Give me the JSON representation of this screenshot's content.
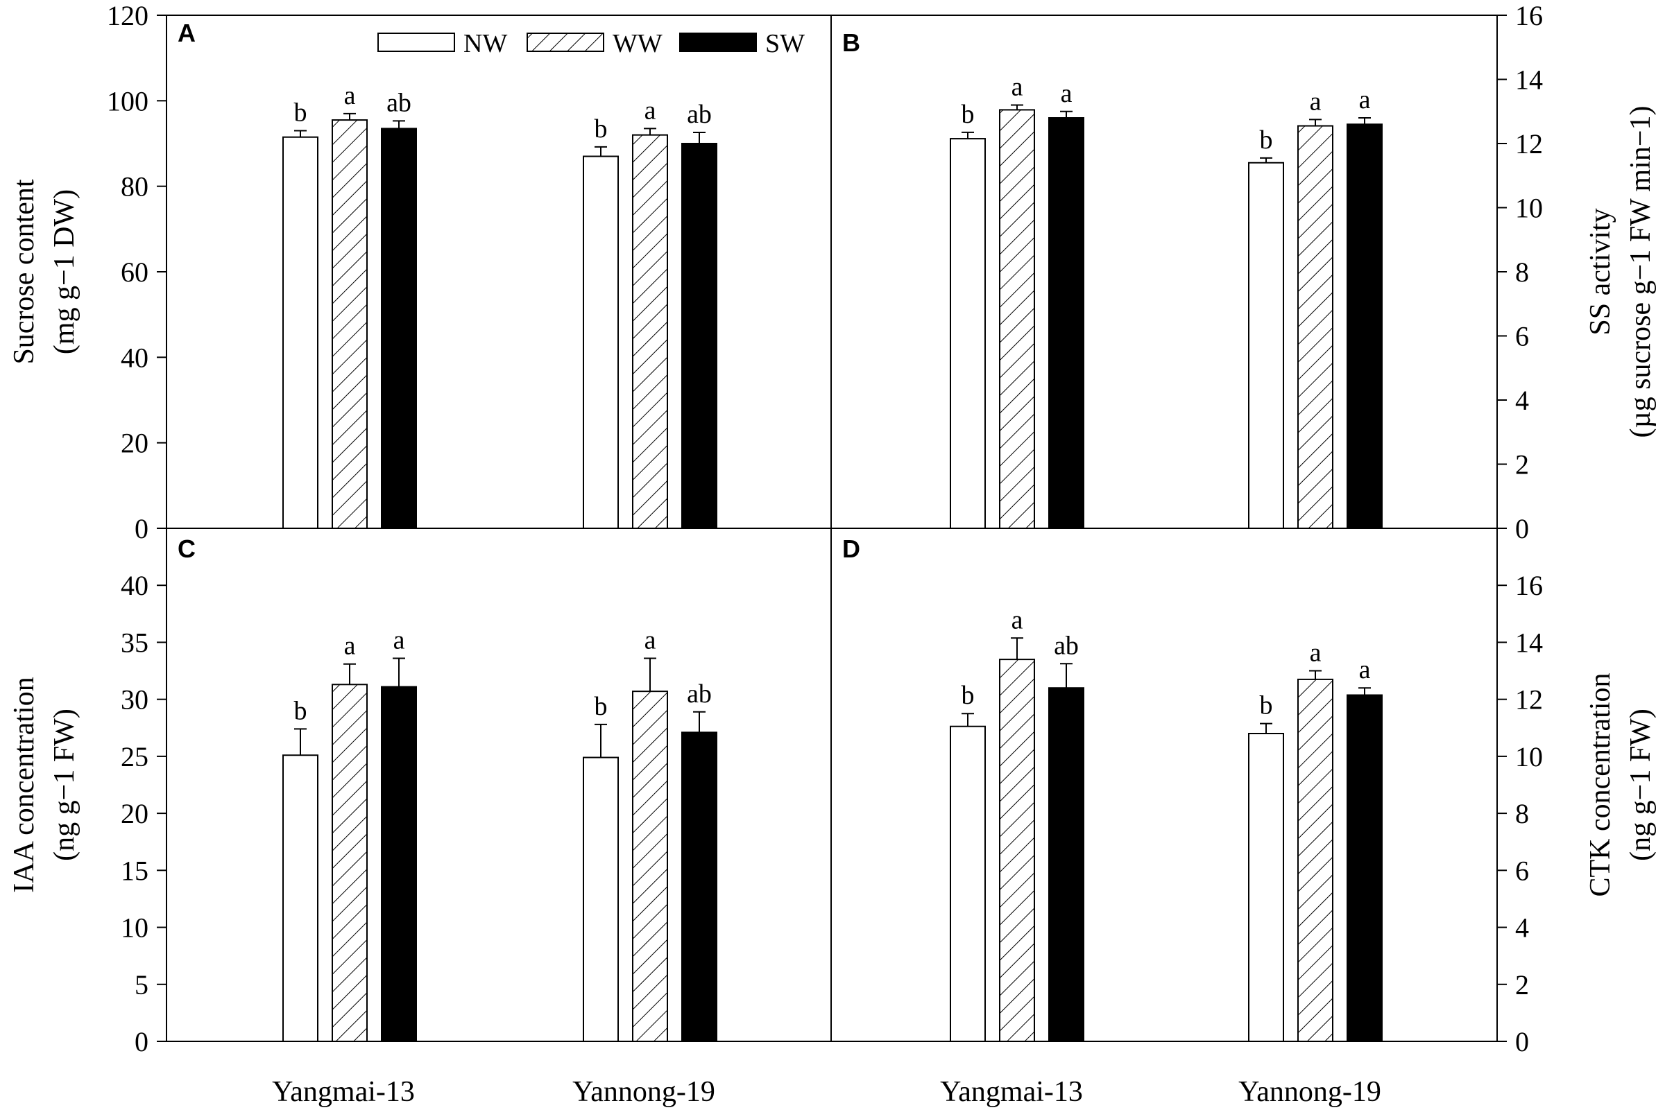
{
  "legend": [
    {
      "key": "NW",
      "label": "NW",
      "fill": "white"
    },
    {
      "key": "WW",
      "label": "WW",
      "fill": "hatch"
    },
    {
      "key": "SW",
      "label": "SW",
      "fill": "black"
    }
  ],
  "x_categories": [
    "Yangmai-13",
    "Yannong-19"
  ],
  "chart_data": [
    {
      "type": "bar",
      "panel": "A",
      "ylabel_lines": [
        "Sucrose content",
        "(mg g−1 DW)"
      ],
      "ylim": [
        0,
        120
      ],
      "yticks": [
        0,
        20,
        40,
        60,
        80,
        100,
        120
      ],
      "categories": [
        "Yangmai-13",
        "Yannong-19"
      ],
      "series": [
        {
          "name": "NW",
          "values": [
            91.5,
            87.0
          ],
          "errors": [
            1.5,
            2.2
          ],
          "sig": [
            "b",
            "b"
          ]
        },
        {
          "name": "WW",
          "values": [
            95.5,
            92.0
          ],
          "errors": [
            1.5,
            1.5
          ],
          "sig": [
            "a",
            "a"
          ]
        },
        {
          "name": "SW",
          "values": [
            93.5,
            90.0
          ],
          "errors": [
            1.8,
            2.6
          ],
          "sig": [
            "ab",
            "ab"
          ]
        }
      ]
    },
    {
      "type": "bar",
      "panel": "B",
      "ylabel_lines": [
        "SS activity",
        "(µg sucrose g−1 FW min−1)"
      ],
      "ylim": [
        0,
        16
      ],
      "yticks": [
        0,
        2,
        4,
        6,
        8,
        10,
        12,
        14,
        16
      ],
      "categories": [
        "Yangmai-13",
        "Yannong-19"
      ],
      "series": [
        {
          "name": "NW",
          "values": [
            12.15,
            11.4
          ],
          "errors": [
            0.2,
            0.15
          ],
          "sig": [
            "b",
            "b"
          ]
        },
        {
          "name": "WW",
          "values": [
            13.05,
            12.55
          ],
          "errors": [
            0.15,
            0.2
          ],
          "sig": [
            "a",
            "a"
          ]
        },
        {
          "name": "SW",
          "values": [
            12.8,
            12.6
          ],
          "errors": [
            0.2,
            0.2
          ],
          "sig": [
            "a",
            "a"
          ]
        }
      ]
    },
    {
      "type": "bar",
      "panel": "C",
      "ylabel_lines": [
        "IAA concentration",
        "(ng g−1 FW)"
      ],
      "ylim": [
        0,
        45
      ],
      "yticks": [
        0,
        5,
        10,
        15,
        20,
        25,
        30,
        35,
        40
      ],
      "categories": [
        "Yangmai-13",
        "Yannong-19"
      ],
      "series": [
        {
          "name": "NW",
          "values": [
            25.1,
            24.9
          ],
          "errors": [
            2.3,
            2.9
          ],
          "sig": [
            "b",
            "b"
          ]
        },
        {
          "name": "WW",
          "values": [
            31.3,
            30.7
          ],
          "errors": [
            1.8,
            2.9
          ],
          "sig": [
            "a",
            "a"
          ]
        },
        {
          "name": "SW",
          "values": [
            31.1,
            27.1
          ],
          "errors": [
            2.5,
            1.8
          ],
          "sig": [
            "a",
            "ab"
          ]
        }
      ]
    },
    {
      "type": "bar",
      "panel": "D",
      "ylabel_lines": [
        "CTK concentration",
        "(ng g−1 FW)"
      ],
      "ylim": [
        0,
        18
      ],
      "yticks": [
        0,
        2,
        4,
        6,
        8,
        10,
        12,
        14,
        16
      ],
      "categories": [
        "Yangmai-13",
        "Yannong-19"
      ],
      "series": [
        {
          "name": "NW",
          "values": [
            11.05,
            10.8
          ],
          "errors": [
            0.45,
            0.35
          ],
          "sig": [
            "b",
            "b"
          ]
        },
        {
          "name": "WW",
          "values": [
            13.4,
            12.7
          ],
          "errors": [
            0.75,
            0.3
          ],
          "sig": [
            "a",
            "a"
          ]
        },
        {
          "name": "SW",
          "values": [
            12.4,
            12.15
          ],
          "errors": [
            0.85,
            0.25
          ],
          "sig": [
            "ab",
            "a"
          ]
        }
      ]
    }
  ]
}
